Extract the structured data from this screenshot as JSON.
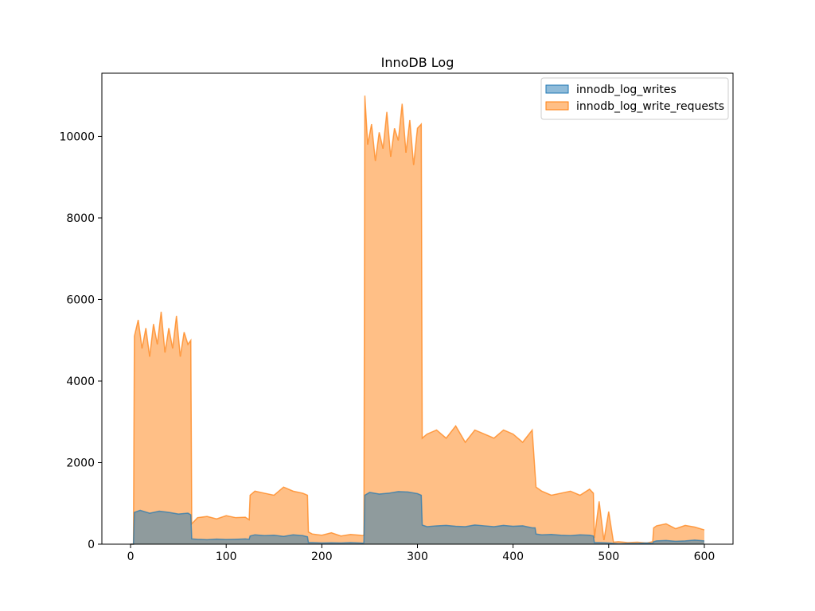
{
  "chart_data": {
    "type": "area",
    "title": "InnoDB Log",
    "xlabel": "",
    "ylabel": "",
    "xlim": [
      -30,
      630
    ],
    "ylim": [
      0,
      11550
    ],
    "xticks": [
      0,
      100,
      200,
      300,
      400,
      500,
      600
    ],
    "yticks": [
      0,
      2000,
      4000,
      6000,
      8000,
      10000
    ],
    "legend_position": "top-right",
    "grid": false,
    "series": [
      {
        "name": "innodb_log_writes",
        "color": "#1f77b4",
        "x": [
          0,
          2,
          3,
          4,
          10,
          20,
          30,
          40,
          50,
          60,
          63,
          64,
          70,
          80,
          90,
          100,
          110,
          120,
          124,
          125,
          130,
          140,
          150,
          160,
          170,
          180,
          185,
          186,
          190,
          200,
          210,
          220,
          230,
          240,
          243,
          244,
          245,
          250,
          260,
          270,
          280,
          290,
          300,
          304,
          305,
          310,
          320,
          330,
          340,
          350,
          360,
          370,
          380,
          390,
          400,
          410,
          420,
          423,
          424,
          430,
          440,
          450,
          460,
          470,
          480,
          484,
          485,
          490,
          500,
          510,
          520,
          530,
          540,
          546,
          547,
          550,
          560,
          570,
          580,
          590,
          600
        ],
        "values": [
          0,
          0,
          0,
          780,
          830,
          760,
          810,
          780,
          740,
          760,
          720,
          130,
          120,
          110,
          125,
          115,
          120,
          130,
          120,
          200,
          230,
          210,
          220,
          190,
          230,
          210,
          180,
          40,
          40,
          30,
          35,
          30,
          40,
          30,
          25,
          40,
          1200,
          1270,
          1230,
          1250,
          1290,
          1280,
          1240,
          1200,
          470,
          430,
          450,
          460,
          440,
          430,
          470,
          450,
          430,
          460,
          440,
          450,
          400,
          400,
          250,
          230,
          240,
          220,
          210,
          230,
          220,
          200,
          40,
          40,
          30,
          10,
          20,
          20,
          30,
          20,
          60,
          80,
          90,
          70,
          80,
          100,
          80
        ]
      },
      {
        "name": "innodb_log_write_requests",
        "color": "#ff7f0e",
        "x": [
          0,
          2,
          3,
          4,
          8,
          12,
          16,
          20,
          24,
          28,
          32,
          36,
          40,
          44,
          48,
          52,
          56,
          60,
          63,
          64,
          70,
          80,
          90,
          100,
          110,
          120,
          124,
          125,
          130,
          140,
          150,
          160,
          170,
          180,
          185,
          186,
          190,
          200,
          210,
          220,
          230,
          240,
          243,
          244,
          245,
          248,
          252,
          256,
          260,
          264,
          268,
          272,
          276,
          280,
          284,
          288,
          292,
          296,
          300,
          304,
          305,
          310,
          320,
          330,
          340,
          350,
          360,
          370,
          380,
          390,
          400,
          410,
          420,
          424,
          430,
          440,
          450,
          460,
          470,
          480,
          484,
          485,
          490,
          495,
          500,
          505,
          510,
          520,
          530,
          540,
          546,
          547,
          550,
          560,
          570,
          580,
          590,
          600
        ],
        "values": [
          0,
          0,
          0,
          5100,
          5500,
          4800,
          5300,
          4600,
          5400,
          4900,
          5700,
          4700,
          5300,
          4800,
          5600,
          4600,
          5200,
          4900,
          5000,
          500,
          650,
          680,
          620,
          700,
          650,
          660,
          600,
          1200,
          1300,
          1250,
          1200,
          1400,
          1300,
          1250,
          1200,
          300,
          250,
          220,
          280,
          200,
          240,
          220,
          210,
          230,
          11000,
          9800,
          10300,
          9400,
          10100,
          9700,
          10600,
          9500,
          10200,
          9900,
          10800,
          9600,
          10400,
          9300,
          10200,
          10300,
          2600,
          2700,
          2800,
          2600,
          2900,
          2500,
          2800,
          2700,
          2600,
          2800,
          2700,
          2500,
          2800,
          1400,
          1300,
          1200,
          1250,
          1300,
          1200,
          1350,
          1250,
          150,
          1050,
          100,
          800,
          50,
          60,
          40,
          50,
          30,
          60,
          400,
          450,
          500,
          380,
          460,
          420,
          350
        ]
      }
    ]
  }
}
